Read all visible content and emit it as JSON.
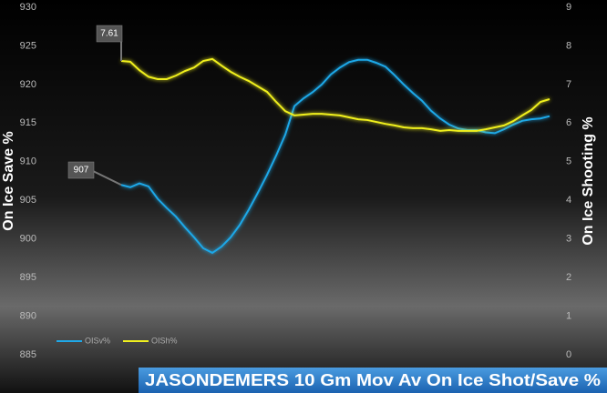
{
  "chart_data": {
    "type": "line",
    "title": "JASONDEMERS 10 Gm Mov Av On Ice Shot/Save %",
    "y_label": "On Ice Save %",
    "y2_label": "On Ice Shooting %",
    "categories": [
      null,
      null,
      null,
      null,
      null,
      null,
      null,
      null,
      null,
      null,
      null,
      null,
      null,
      null,
      null,
      null,
      null,
      null,
      null,
      null,
      null,
      null,
      null,
      null,
      null,
      null,
      null,
      null,
      null,
      null,
      null,
      null,
      null,
      null,
      null,
      null,
      null,
      null,
      null,
      null,
      null,
      null,
      null,
      null,
      null,
      null,
      null,
      null
    ],
    "series": [
      {
        "name": "OISv%",
        "color": "#1fa8e8",
        "values": [
          907,
          906.7,
          907.2,
          906.8,
          905.2,
          904.0,
          902.9,
          901.5,
          900.2,
          898.8,
          898.2,
          899.0,
          900.2,
          901.8,
          903.8,
          906.0,
          908.3,
          910.8,
          913.5,
          917.2,
          918.2,
          919.0,
          920.0,
          921.3,
          922.2,
          922.9,
          923.2,
          923.2,
          922.8,
          922.3,
          921.2,
          920.0,
          918.9,
          917.9,
          916.6,
          915.6,
          914.8,
          914.3,
          914.1,
          914.1,
          913.8,
          913.7,
          914.2,
          914.8,
          915.3,
          915.5,
          915.6,
          915.9
        ]
      },
      {
        "name": "OISh%",
        "color": "#f0f01e",
        "axis": "y2",
        "values": [
          7.61,
          7.59,
          7.37,
          7.2,
          7.14,
          7.14,
          7.23,
          7.35,
          7.44,
          7.61,
          7.66,
          7.49,
          7.33,
          7.2,
          7.09,
          6.95,
          6.81,
          6.55,
          6.31,
          6.2,
          6.22,
          6.24,
          6.24,
          6.22,
          6.2,
          6.15,
          6.1,
          6.08,
          6.03,
          5.98,
          5.94,
          5.89,
          5.87,
          5.87,
          5.84,
          5.8,
          5.82,
          5.8,
          5.8,
          5.8,
          5.84,
          5.89,
          5.94,
          6.05,
          6.2,
          6.34,
          6.55,
          6.62
        ]
      }
    ],
    "ylim": [
      885,
      930
    ],
    "yticks": [
      885,
      890,
      895,
      900,
      905,
      910,
      915,
      920,
      925,
      930
    ],
    "y2lim": [
      0,
      9
    ],
    "y2ticks": [
      0,
      1,
      2,
      3,
      4,
      5,
      6,
      7,
      8,
      9
    ],
    "legend": "bottom-left"
  }
}
